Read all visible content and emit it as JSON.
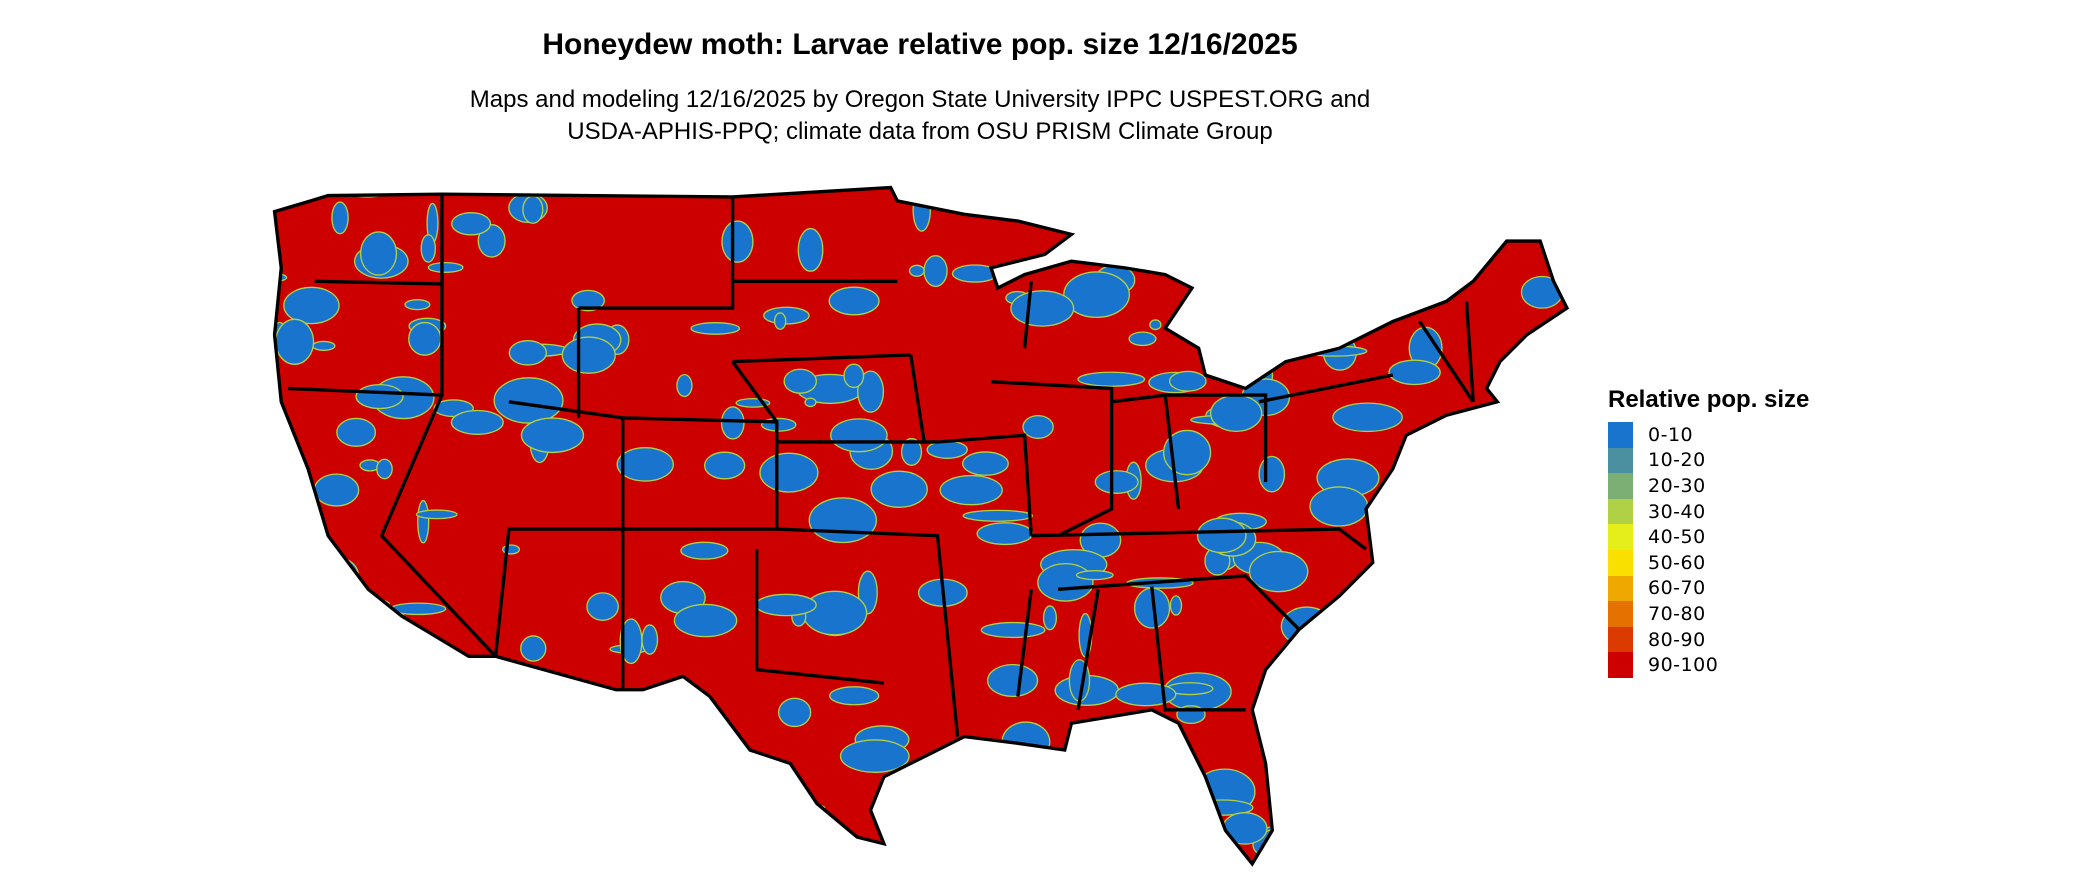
{
  "title": "Honeydew moth: Larvae relative pop. size 12/16/2025",
  "subtitle_line1": "Maps and modeling 12/16/2025 by Oregon State University IPPC USPEST.ORG and",
  "subtitle_line2": "USDA-APHIS-PPQ; climate data from OSU PRISM Climate Group",
  "legend": {
    "title": "Relative pop. size",
    "items": [
      {
        "label": "0-10",
        "color": "#1874CD"
      },
      {
        "label": "10-20",
        "color": "#4A90A0"
      },
      {
        "label": "20-30",
        "color": "#7BAF74"
      },
      {
        "label": "30-40",
        "color": "#B0D046"
      },
      {
        "label": "40-50",
        "color": "#E5EE1A"
      },
      {
        "label": "50-60",
        "color": "#F9E000"
      },
      {
        "label": "60-70",
        "color": "#EFA800"
      },
      {
        "label": "70-80",
        "color": "#E57200"
      },
      {
        "label": "80-90",
        "color": "#DB3A00"
      },
      {
        "label": "90-100",
        "color": "#CD0000"
      }
    ]
  },
  "map": {
    "region": "Contiguous United States",
    "dominant_class": "90-100",
    "secondary_class": "0-10"
  }
}
